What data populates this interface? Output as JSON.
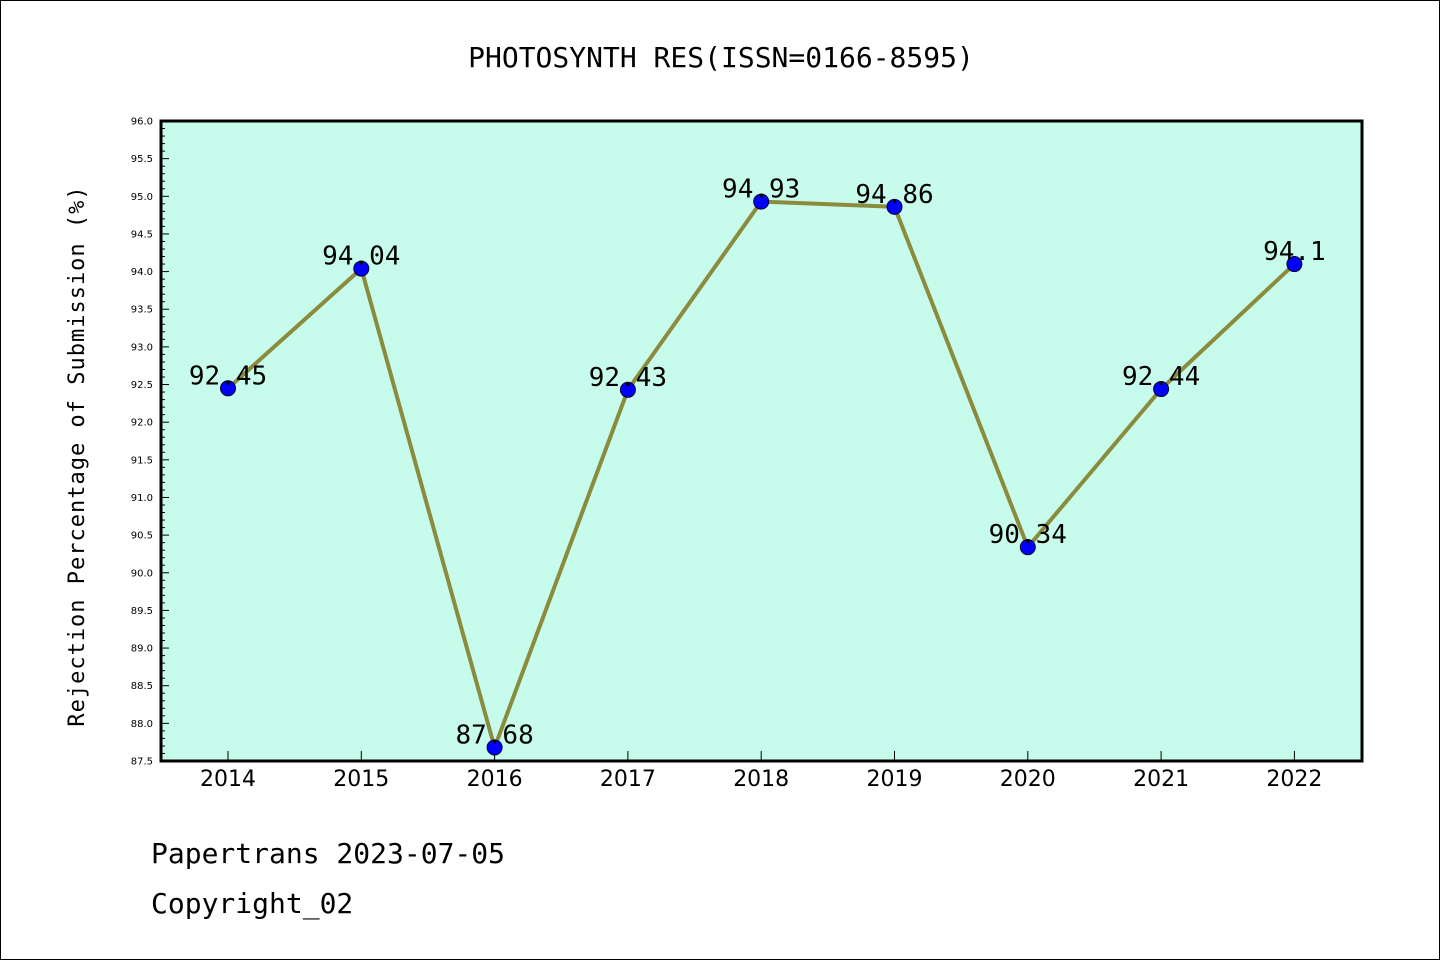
{
  "chart_data": {
    "type": "line",
    "title": "PHOTOSYNTH RES(ISSN=0166-8595)",
    "xlabel": "",
    "ylabel": "Rejection Percentage of Submission (%)",
    "categories": [
      "2014",
      "2015",
      "2016",
      "2017",
      "2018",
      "2019",
      "2020",
      "2021",
      "2022"
    ],
    "series": [
      {
        "values": [
          92.45,
          94.04,
          87.68,
          92.43,
          94.93,
          94.86,
          90.34,
          92.44,
          94.1
        ],
        "labels": [
          "92.45",
          "94.04",
          "87.68",
          "92.43",
          "94.93",
          "94.86",
          "90.34",
          "92.44",
          "94.1"
        ]
      }
    ],
    "ylim": [
      87.5,
      96.0
    ],
    "yticks": [
      "87.5",
      "88.0",
      "88.5",
      "89.0",
      "89.5",
      "90.0",
      "90.5",
      "91.0",
      "91.5",
      "92.0",
      "92.5",
      "93.0",
      "93.5",
      "94.0",
      "94.5",
      "95.0",
      "95.5",
      "96.0"
    ],
    "grid": false,
    "colors": {
      "plot_background": "#c7fcec",
      "line": "#8b8b3d",
      "marker": "#0000ff"
    }
  },
  "footer": {
    "line1": "Papertrans 2023-07-05",
    "line2": "Copyright_02"
  }
}
